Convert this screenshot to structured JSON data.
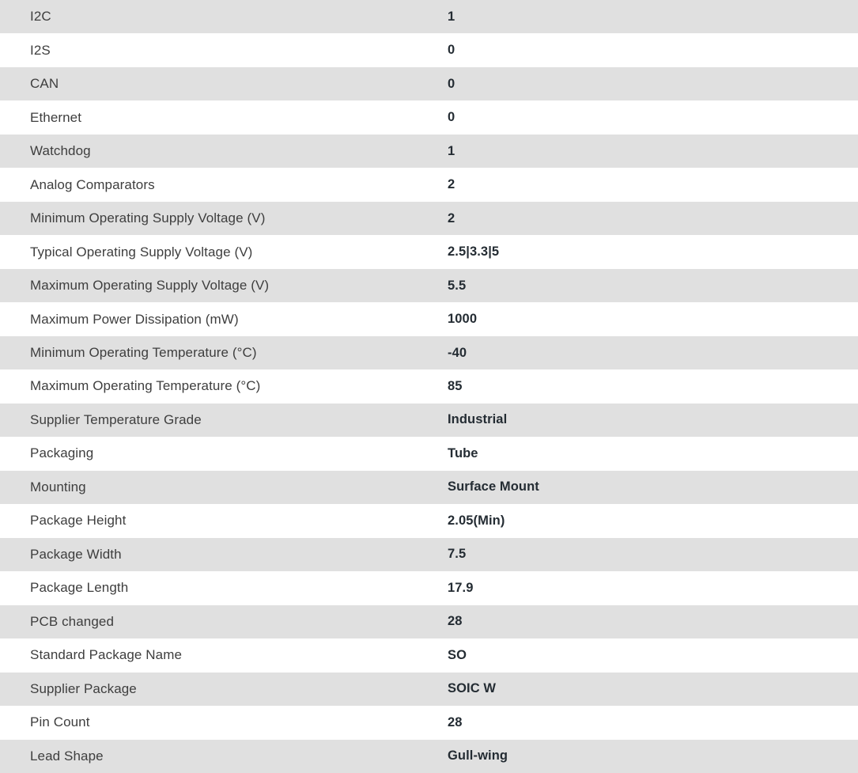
{
  "table": {
    "colors": {
      "stripe": "#e0e0e0",
      "label_text": "#3e3e3e",
      "value_text": "#242c33"
    },
    "rows": [
      {
        "label": "I2C",
        "value": "1"
      },
      {
        "label": "I2S",
        "value": "0"
      },
      {
        "label": "CAN",
        "value": "0"
      },
      {
        "label": "Ethernet",
        "value": "0"
      },
      {
        "label": "Watchdog",
        "value": "1"
      },
      {
        "label": "Analog Comparators",
        "value": "2"
      },
      {
        "label": "Minimum Operating Supply Voltage (V)",
        "value": "2"
      },
      {
        "label": "Typical Operating Supply Voltage (V)",
        "value": "2.5|3.3|5"
      },
      {
        "label": "Maximum Operating Supply Voltage (V)",
        "value": "5.5"
      },
      {
        "label": "Maximum Power Dissipation (mW)",
        "value": "1000"
      },
      {
        "label": "Minimum Operating Temperature (°C)",
        "value": "-40"
      },
      {
        "label": "Maximum Operating Temperature (°C)",
        "value": "85"
      },
      {
        "label": "Supplier Temperature Grade",
        "value": "Industrial"
      },
      {
        "label": "Packaging",
        "value": "Tube"
      },
      {
        "label": "Mounting",
        "value": "Surface Mount"
      },
      {
        "label": "Package Height",
        "value": "2.05(Min)"
      },
      {
        "label": "Package Width",
        "value": "7.5"
      },
      {
        "label": "Package Length",
        "value": "17.9"
      },
      {
        "label": "PCB changed",
        "value": "28"
      },
      {
        "label": "Standard Package Name",
        "value": "SO"
      },
      {
        "label": "Supplier Package",
        "value": "SOIC W"
      },
      {
        "label": "Pin Count",
        "value": "28"
      },
      {
        "label": "Lead Shape",
        "value": "Gull-wing"
      }
    ]
  }
}
